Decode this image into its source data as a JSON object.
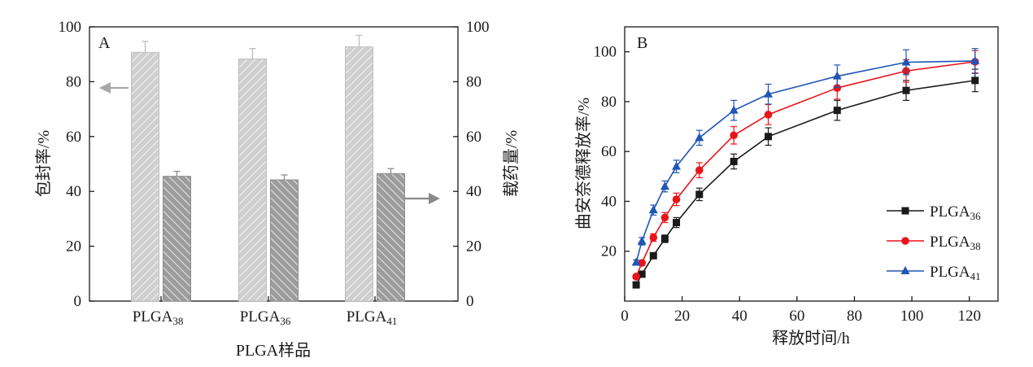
{
  "chart_data": [
    {
      "type": "bar",
      "panel_label": "A",
      "categories": [
        {
          "base": "PLGA",
          "sub": "38"
        },
        {
          "base": "PLGA",
          "sub": "36"
        },
        {
          "base": "PLGA",
          "sub": "41"
        }
      ],
      "xlabel": "PLGA样品",
      "ylabel_left": "包封率/%",
      "ylabel_right": "载药量/%",
      "ylim": [
        0,
        100
      ],
      "yticks": [
        0,
        20,
        40,
        60,
        80,
        100
      ],
      "series": [
        {
          "values": [
            90.7,
            88.3,
            92.7
          ],
          "errors": [
            4.0,
            3.8,
            4.2
          ],
          "axis": "left",
          "color": "#c9c9c9",
          "hatch": "light"
        },
        {
          "values": [
            45.5,
            44.2,
            46.5
          ],
          "errors": [
            1.8,
            1.8,
            1.8
          ],
          "axis": "right",
          "color": "#9a9a9a",
          "hatch": "dark"
        }
      ]
    },
    {
      "type": "line",
      "panel_label": "B",
      "xlabel": "释放时间/h",
      "ylabel": "曲安奈德释放率/%",
      "xlim": [
        0,
        130
      ],
      "ylim": [
        0,
        110
      ],
      "xticks": [
        0,
        20,
        40,
        60,
        80,
        100,
        120
      ],
      "yticks": [
        20,
        40,
        60,
        80,
        100
      ],
      "legend_position": "lower-right",
      "series": [
        {
          "name_base": "PLGA",
          "name_sub": "36",
          "color": "#1a1a1a",
          "marker": "square",
          "x": [
            4,
            6,
            10,
            14,
            18,
            26,
            38,
            50,
            74,
            98,
            122
          ],
          "y": [
            6.5,
            10.8,
            18.2,
            25.0,
            31.5,
            42.8,
            56.0,
            66.0,
            76.5,
            84.5,
            88.5
          ],
          "err": [
            0.8,
            1.0,
            1.2,
            1.5,
            2.0,
            2.5,
            3.0,
            3.5,
            4.0,
            4.0,
            4.5
          ]
        },
        {
          "name_base": "PLGA",
          "name_sub": "38",
          "color": "#e8141b",
          "marker": "circle",
          "x": [
            4,
            6,
            10,
            14,
            18,
            26,
            38,
            50,
            74,
            98,
            122
          ],
          "y": [
            9.8,
            15.3,
            25.5,
            33.5,
            40.8,
            52.5,
            66.5,
            74.8,
            85.5,
            92.3,
            96.0
          ],
          "err": [
            0.8,
            1.0,
            1.5,
            2.0,
            2.5,
            3.0,
            3.5,
            4.0,
            4.5,
            4.5,
            4.5
          ]
        },
        {
          "name_base": "PLGA",
          "name_sub": "41",
          "color": "#1f56b4",
          "marker": "triangle",
          "x": [
            4,
            6,
            10,
            14,
            18,
            26,
            38,
            50,
            74,
            98,
            122
          ],
          "y": [
            15.5,
            24.0,
            36.5,
            46.0,
            54.0,
            65.5,
            76.5,
            83.0,
            90.2,
            95.8,
            96.3
          ],
          "err": [
            1.0,
            1.5,
            2.0,
            2.2,
            2.5,
            3.0,
            4.0,
            4.0,
            4.5,
            5.0,
            5.0
          ]
        }
      ]
    }
  ]
}
